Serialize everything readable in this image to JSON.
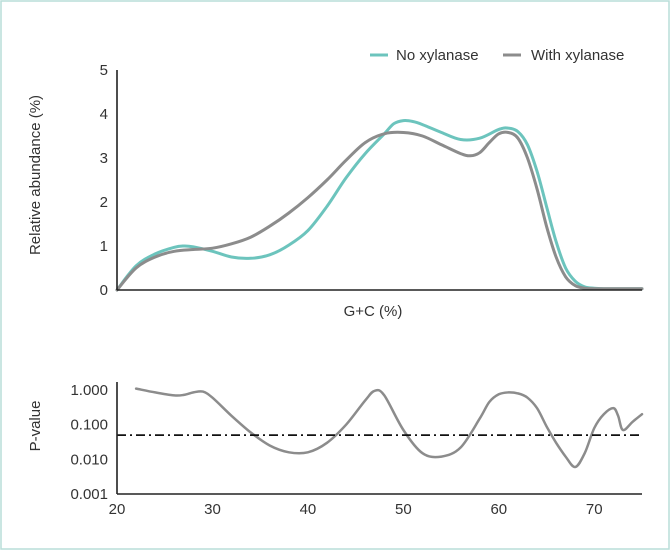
{
  "chart_data": [
    {
      "type": "line",
      "xlabel": "G+C (%)",
      "ylabel": "Relative abundance (%)",
      "xlim": [
        20,
        75
      ],
      "ylim": [
        0,
        5
      ],
      "yticks": [
        "0",
        "1",
        "2",
        "3",
        "4",
        "5"
      ],
      "legend_position": "top-right",
      "series": [
        {
          "name": "No xylanase",
          "color": "#6cc4bd",
          "x": [
            20,
            22,
            24,
            26,
            27,
            28,
            30,
            32,
            34,
            36,
            38,
            40,
            42,
            44,
            46,
            48,
            49,
            50,
            51,
            52,
            54,
            56,
            58,
            60,
            61,
            62,
            63,
            64,
            65,
            66,
            67,
            68,
            69,
            70,
            71,
            72,
            73,
            75
          ],
          "values": [
            0.0,
            0.55,
            0.82,
            0.97,
            1.0,
            0.98,
            0.88,
            0.75,
            0.72,
            0.8,
            1.02,
            1.35,
            1.9,
            2.55,
            3.1,
            3.55,
            3.78,
            3.85,
            3.83,
            3.76,
            3.58,
            3.42,
            3.45,
            3.65,
            3.68,
            3.6,
            3.3,
            2.7,
            1.9,
            1.1,
            0.5,
            0.2,
            0.07,
            0.04,
            0.03,
            0.03,
            0.03,
            0.03
          ]
        },
        {
          "name": "With xylanase",
          "color": "#8c8c8c",
          "x": [
            20,
            22,
            24,
            26,
            28,
            30,
            32,
            34,
            36,
            38,
            40,
            42,
            44,
            46,
            48,
            50,
            52,
            54,
            56,
            57,
            58,
            59,
            60,
            61,
            62,
            63,
            64,
            65,
            66,
            67,
            68,
            69,
            70,
            71,
            72,
            73,
            75
          ],
          "values": [
            0.0,
            0.5,
            0.75,
            0.88,
            0.92,
            0.95,
            1.05,
            1.2,
            1.45,
            1.75,
            2.1,
            2.5,
            2.95,
            3.35,
            3.55,
            3.58,
            3.5,
            3.3,
            3.1,
            3.05,
            3.12,
            3.35,
            3.55,
            3.58,
            3.45,
            3.0,
            2.3,
            1.45,
            0.75,
            0.3,
            0.1,
            0.04,
            0.03,
            0.03,
            0.03,
            0.03,
            0.03
          ]
        }
      ]
    },
    {
      "type": "line",
      "xlabel": "",
      "ylabel": "P-value",
      "xlim": [
        20,
        75
      ],
      "ylim": [
        0.001,
        1.5
      ],
      "yscale": "log",
      "yticks": [
        "0.001",
        "0.010",
        "0.100",
        "1.000"
      ],
      "xticks": [
        "20",
        "30",
        "40",
        "50",
        "60",
        "70"
      ],
      "threshold": 0.05,
      "series": [
        {
          "color": "#8c8c8c",
          "x": [
            22,
            24,
            26,
            27,
            28,
            29,
            30,
            32,
            34,
            36,
            38,
            40,
            42,
            44,
            46,
            47,
            48,
            50,
            52,
            54,
            56,
            58,
            59,
            60,
            61,
            62,
            63,
            64,
            65,
            66,
            67,
            68,
            69,
            70,
            71,
            72,
            72.5,
            73,
            74,
            75
          ],
          "values": [
            1.1,
            0.85,
            0.7,
            0.72,
            0.85,
            0.9,
            0.6,
            0.18,
            0.06,
            0.025,
            0.016,
            0.016,
            0.03,
            0.1,
            0.5,
            0.95,
            0.7,
            0.07,
            0.015,
            0.012,
            0.022,
            0.15,
            0.45,
            0.75,
            0.85,
            0.8,
            0.6,
            0.3,
            0.09,
            0.03,
            0.012,
            0.006,
            0.015,
            0.08,
            0.2,
            0.3,
            0.18,
            0.07,
            0.12,
            0.2
          ]
        }
      ]
    }
  ]
}
